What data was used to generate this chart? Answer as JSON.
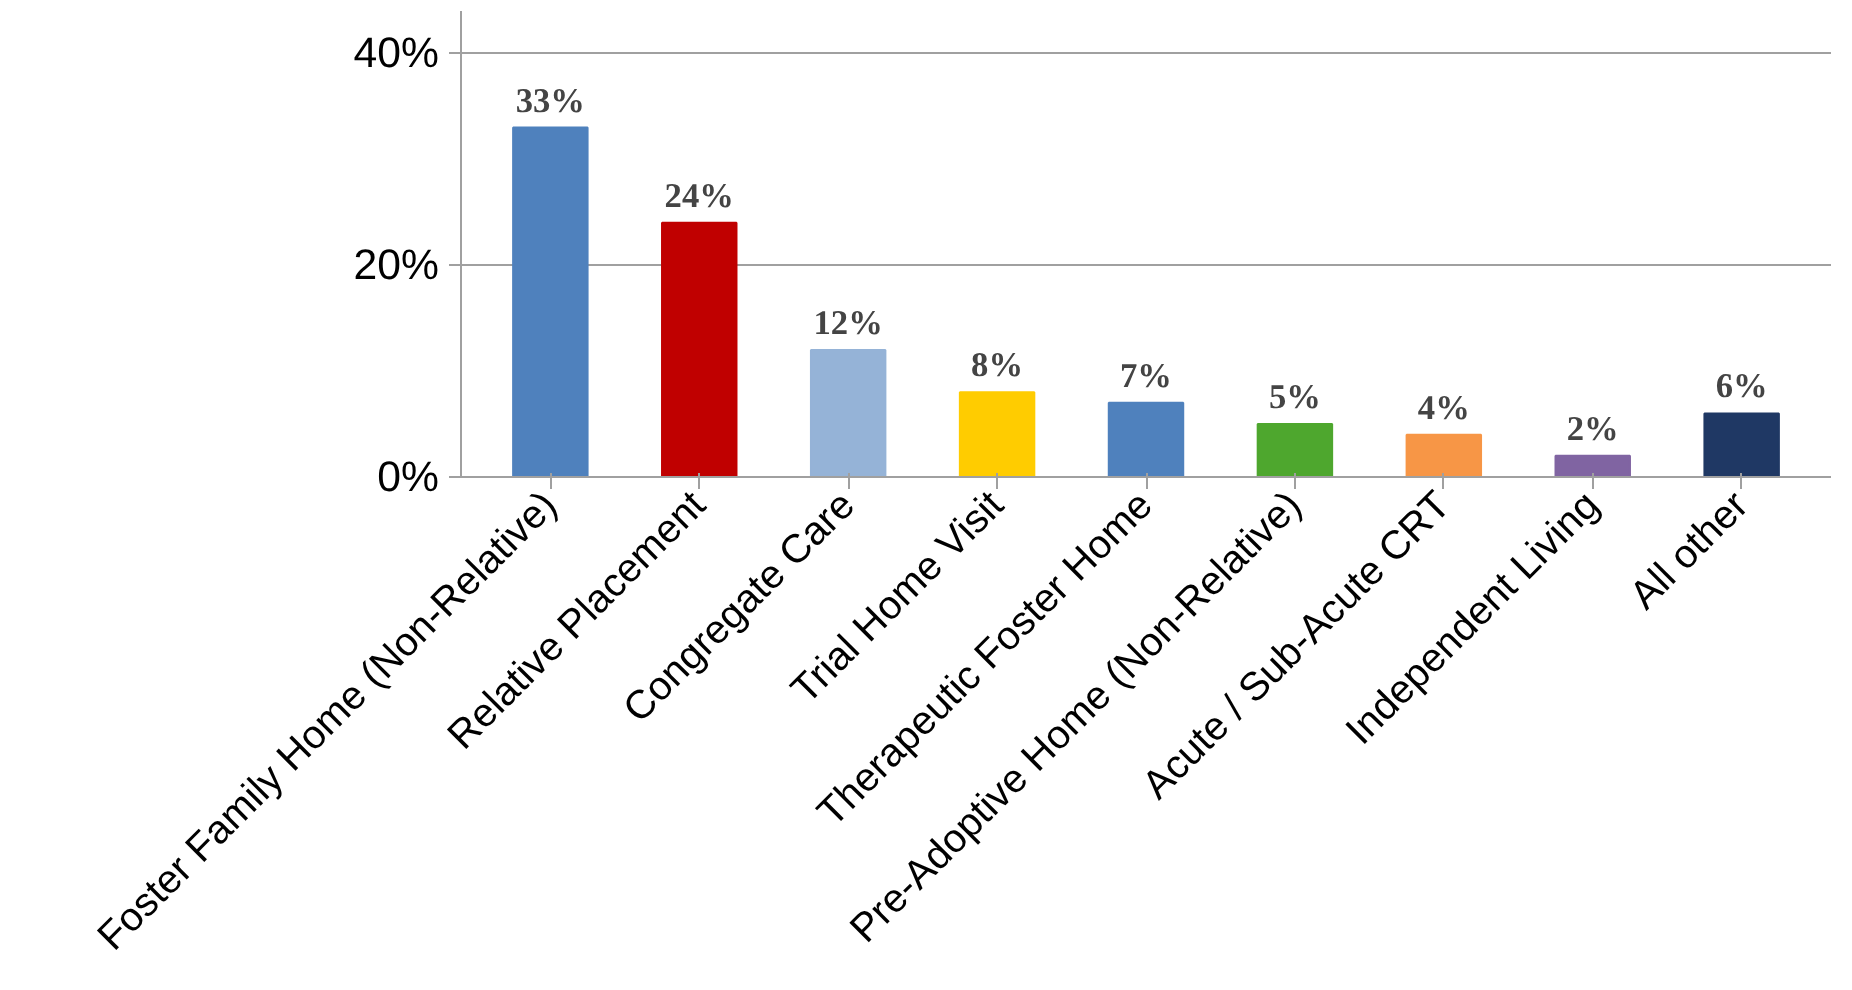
{
  "chart_data": {
    "type": "bar",
    "categories": [
      "Foster Family Home (Non-Relative)",
      "Relative Placement",
      "Congregate Care",
      "Trial Home Visit",
      "Therapeutic Foster Home",
      "Pre-Adoptive Home (Non-Relative)",
      "Acute / Sub-Acute CRT",
      "Independent Living",
      "All other"
    ],
    "values": [
      33,
      24,
      12,
      8,
      7,
      5,
      4,
      2,
      6
    ],
    "colors": [
      "#4f81bd",
      "#c00000",
      "#95b3d7",
      "#ffcc00",
      "#4f81bd",
      "#4ea72e",
      "#f79646",
      "#8064a2",
      "#1f3864"
    ],
    "value_labels": [
      "33%",
      "24%",
      "12%",
      "8%",
      "7%",
      "5%",
      "4%",
      "2%",
      "6%"
    ],
    "ylim": [
      0,
      44
    ],
    "yticks": [
      {
        "value": 0,
        "label": "0%"
      },
      {
        "value": 20,
        "label": "20%"
      },
      {
        "value": 40,
        "label": "40%"
      }
    ],
    "grid": "y"
  }
}
